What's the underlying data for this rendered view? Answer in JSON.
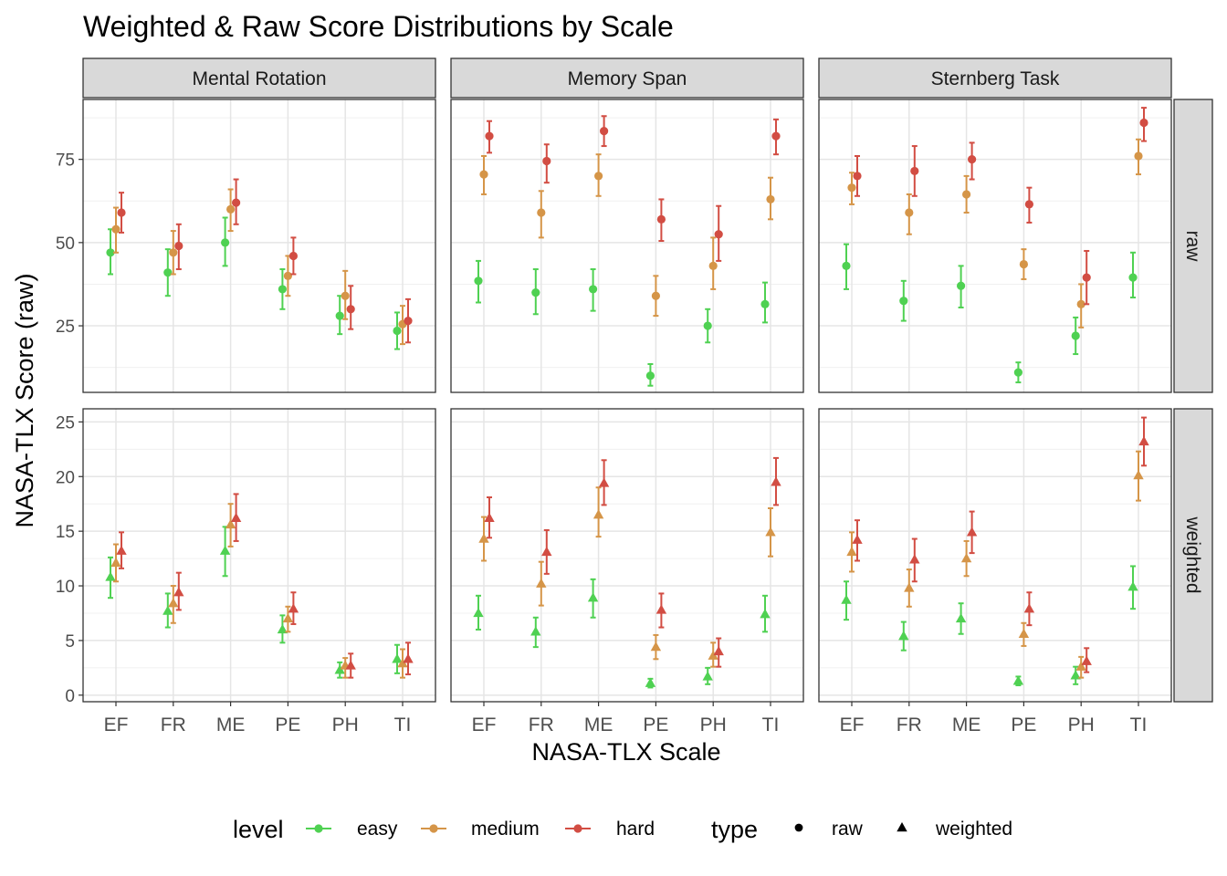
{
  "chart_data": {
    "type": "scatter",
    "title": "Weighted & Raw Score Distributions by Scale",
    "xlabel": "NASA-TLX Scale",
    "ylabel": "NASA-TLX Score (raw)",
    "categories": [
      "EF",
      "FR",
      "ME",
      "PE",
      "PH",
      "TI"
    ],
    "facet_columns": [
      "Mental Rotation",
      "Memory Span",
      "Sternberg Task"
    ],
    "facet_rows": [
      "raw",
      "weighted"
    ],
    "rows": {
      "raw": {
        "ylim": [
          5,
          93
        ],
        "ticks": [
          25,
          50,
          75
        ]
      },
      "weighted": {
        "ylim": [
          -0.6,
          26.2
        ],
        "ticks": [
          0,
          5,
          10,
          15,
          20,
          25
        ]
      }
    },
    "levels": [
      {
        "name": "easy",
        "color": "#4fd152"
      },
      {
        "name": "medium",
        "color": "#d59548"
      },
      {
        "name": "hard",
        "color": "#d24d43"
      }
    ],
    "types": [
      {
        "name": "raw",
        "shape": "circle"
      },
      {
        "name": "weighted",
        "shape": "triangle"
      }
    ],
    "legend": {
      "level_title": "level",
      "type_title": "type",
      "position": "bottom"
    },
    "grid": true,
    "panels": {
      "raw": {
        "Mental Rotation": {
          "easy": [
            [
              47,
              40.5,
              54
            ],
            [
              41,
              34,
              48
            ],
            [
              50,
              43,
              57.5
            ],
            [
              36,
              30,
              42
            ],
            [
              28,
              22.5,
              34
            ],
            [
              23.5,
              18,
              29
            ]
          ],
          "medium": [
            [
              54,
              47,
              60.5
            ],
            [
              47,
              40.5,
              53.5
            ],
            [
              60,
              53.5,
              66
            ],
            [
              40,
              34,
              46
            ],
            [
              34,
              27,
              41.5
            ],
            [
              25.5,
              19.5,
              31
            ]
          ],
          "hard": [
            [
              59,
              53,
              65
            ],
            [
              49,
              42,
              55.5
            ],
            [
              62,
              55.5,
              69
            ],
            [
              46,
              40.5,
              51.5
            ],
            [
              30,
              24,
              37
            ],
            [
              26.5,
              20,
              33
            ]
          ]
        },
        "Memory Span": {
          "easy": [
            [
              38.5,
              32,
              44.5
            ],
            [
              35,
              28.5,
              42
            ],
            [
              36,
              29.5,
              42
            ],
            [
              10,
              7,
              13.5
            ],
            [
              25,
              20,
              30
            ],
            [
              31.5,
              26,
              38
            ]
          ],
          "medium": [
            [
              70.5,
              64.5,
              76
            ],
            [
              59,
              51.5,
              65.5
            ],
            [
              70,
              64,
              76.5
            ],
            [
              34,
              28,
              40
            ],
            [
              43,
              36,
              51.5
            ],
            [
              63,
              57,
              69.5
            ]
          ],
          "hard": [
            [
              82,
              77,
              86.5
            ],
            [
              74.5,
              68,
              79.5
            ],
            [
              83.5,
              79,
              88
            ],
            [
              57,
              50.5,
              63
            ],
            [
              52.5,
              44.5,
              61
            ],
            [
              82,
              76.5,
              87
            ]
          ]
        },
        "Sternberg Task": {
          "easy": [
            [
              43,
              36,
              49.5
            ],
            [
              32.5,
              26.5,
              38.5
            ],
            [
              37,
              30.5,
              43
            ],
            [
              11,
              8,
              14
            ],
            [
              22,
              16.5,
              27.5
            ],
            [
              39.5,
              33.5,
              47
            ]
          ],
          "medium": [
            [
              66.5,
              61.5,
              71
            ],
            [
              59,
              52.5,
              64.5
            ],
            [
              64.5,
              59,
              70
            ],
            [
              43.5,
              39,
              48
            ],
            [
              31.5,
              24.5,
              37.5
            ],
            [
              76,
              70.5,
              81
            ]
          ],
          "hard": [
            [
              70,
              64,
              76
            ],
            [
              71.5,
              64,
              79
            ],
            [
              75,
              69,
              80
            ],
            [
              61.5,
              56,
              66.5
            ],
            [
              39.5,
              31.5,
              47.5
            ],
            [
              86,
              80.5,
              90.5
            ]
          ]
        }
      },
      "weighted": {
        "Mental Rotation": {
          "easy": [
            [
              10.8,
              8.9,
              12.6
            ],
            [
              7.7,
              6.2,
              9.3
            ],
            [
              13.2,
              10.9,
              15.4
            ],
            [
              6,
              4.8,
              7.3
            ],
            [
              2.3,
              1.6,
              3
            ],
            [
              3.3,
              2,
              4.6
            ]
          ],
          "medium": [
            [
              12.1,
              10.4,
              13.8
            ],
            [
              8.4,
              6.6,
              10
            ],
            [
              15.6,
              13.6,
              17.5
            ],
            [
              7,
              5.8,
              8.1
            ],
            [
              2.7,
              1.6,
              3.4
            ],
            [
              2.9,
              1.6,
              4.2
            ]
          ],
          "hard": [
            [
              13.2,
              11.6,
              14.9
            ],
            [
              9.4,
              7.8,
              11.2
            ],
            [
              16.2,
              14.1,
              18.4
            ],
            [
              7.9,
              6.5,
              9.4
            ],
            [
              2.7,
              1.6,
              3.8
            ],
            [
              3.3,
              1.9,
              4.8
            ]
          ]
        },
        "Memory Span": {
          "easy": [
            [
              7.5,
              6,
              9.1
            ],
            [
              5.8,
              4.4,
              7.1
            ],
            [
              8.9,
              7.1,
              10.6
            ],
            [
              1.1,
              0.7,
              1.5
            ],
            [
              1.7,
              1,
              2.5
            ],
            [
              7.4,
              5.8,
              9.1
            ]
          ],
          "medium": [
            [
              14.3,
              12.3,
              16.3
            ],
            [
              10.2,
              8.2,
              12.2
            ],
            [
              16.5,
              14.5,
              19
            ],
            [
              4.4,
              3.3,
              5.5
            ],
            [
              3.6,
              2.6,
              4.8
            ],
            [
              14.9,
              12.7,
              17.1
            ]
          ],
          "hard": [
            [
              16.2,
              14.4,
              18.1
            ],
            [
              13.1,
              11.1,
              15.1
            ],
            [
              19.4,
              17.4,
              21.5
            ],
            [
              7.8,
              6.2,
              9.3
            ],
            [
              4,
              2.6,
              5.2
            ],
            [
              19.5,
              17.4,
              21.7
            ]
          ]
        },
        "Sternberg Task": {
          "easy": [
            [
              8.7,
              6.9,
              10.4
            ],
            [
              5.4,
              4.1,
              6.7
            ],
            [
              7,
              5.6,
              8.4
            ],
            [
              1.3,
              0.9,
              1.7
            ],
            [
              1.8,
              1,
              2.6
            ],
            [
              9.9,
              7.9,
              11.8
            ]
          ],
          "medium": [
            [
              13.1,
              11.3,
              14.9
            ],
            [
              9.8,
              8.1,
              11.5
            ],
            [
              12.5,
              10.9,
              14.1
            ],
            [
              5.6,
              4.5,
              6.6
            ],
            [
              2.6,
              1.6,
              3.5
            ],
            [
              20.1,
              17.8,
              22.3
            ]
          ],
          "hard": [
            [
              14.2,
              12.3,
              16
            ],
            [
              12.4,
              10.4,
              14.3
            ],
            [
              14.9,
              13,
              16.8
            ],
            [
              7.9,
              6.4,
              9.4
            ],
            [
              3.1,
              2.1,
              4.3
            ],
            [
              23.2,
              21,
              25.4
            ]
          ]
        }
      }
    }
  }
}
